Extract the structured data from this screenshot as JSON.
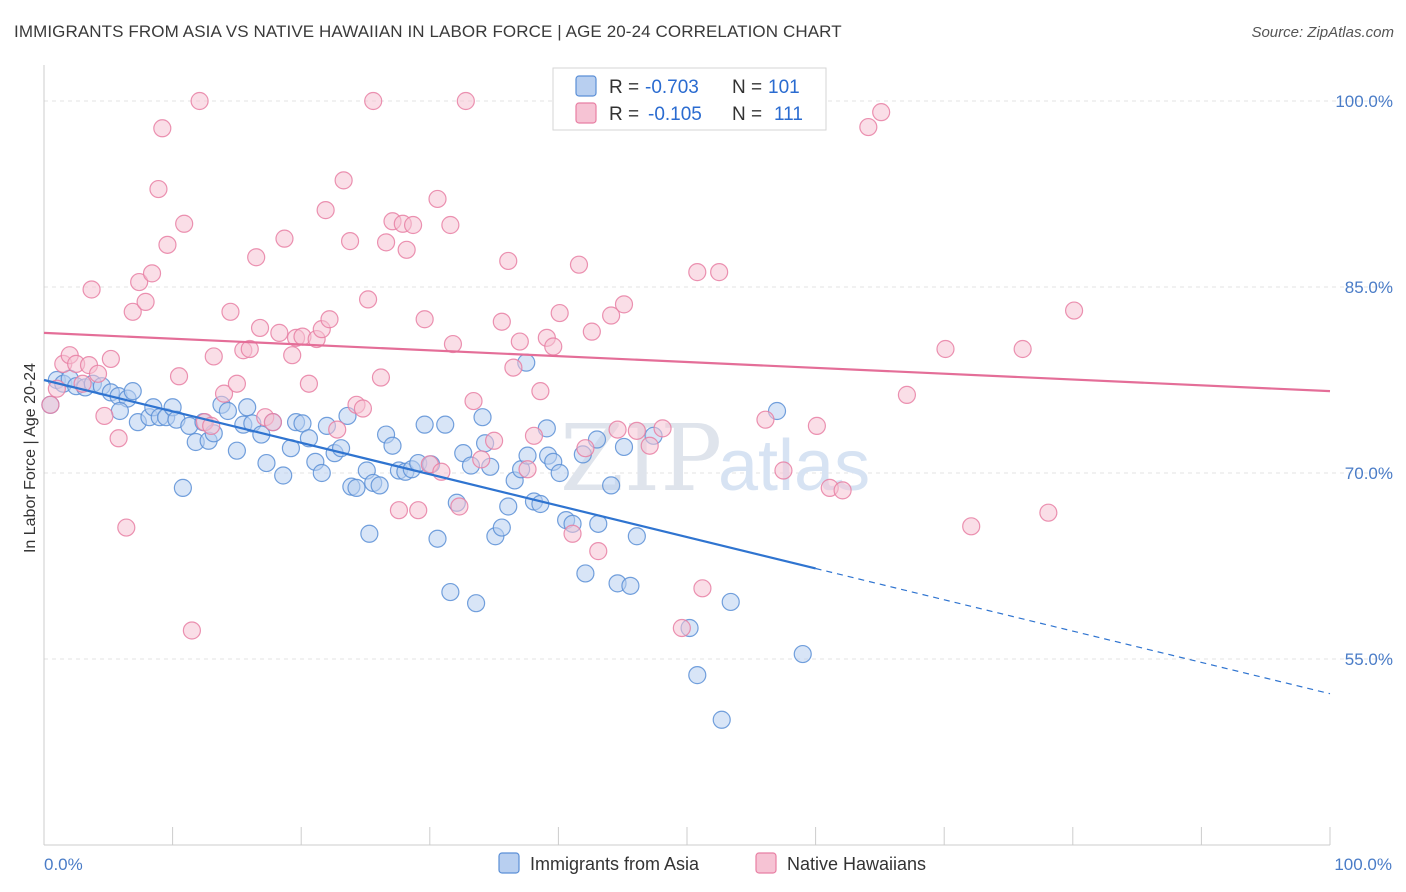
{
  "title": "IMMIGRANTS FROM ASIA VS NATIVE HAWAIIAN IN LABOR FORCE | AGE 20-24 CORRELATION CHART",
  "source": "Source: ZipAtlas.com",
  "watermark": {
    "zip": "ZIP",
    "atlas": "atlas"
  },
  "colors": {
    "blue": "#5b8fd6",
    "blue_fill": "#b8cff0",
    "blue_line": "#2f74d0",
    "pink": "#e87fa3",
    "pink_fill": "#f6c3d4",
    "pink_line": "#e46e98",
    "grid": "#e3e3e3",
    "axis_text": "#4a7cc7"
  },
  "legend": {
    "rows": [
      {
        "r_label": "R = ",
        "r_value": "-0.703",
        "n_label": "N = ",
        "n_value": "101"
      },
      {
        "r_label": "R = ",
        "r_value": "-0.105",
        "n_label": "N = ",
        "n_value": "111"
      }
    ]
  },
  "bottom_legend": [
    "Immigrants from Asia",
    "Native Hawaiians"
  ],
  "chart_data": {
    "type": "scatter",
    "title": "IMMIGRANTS FROM ASIA VS NATIVE HAWAIIAN IN LABOR FORCE | AGE 20-24 CORRELATION CHART",
    "xlabel": "",
    "ylabel": "In Labor Force | Age 20-24",
    "xlim": [
      0,
      100
    ],
    "ylim": [
      40,
      102.5
    ],
    "x_ticks": [
      "0.0%",
      "100.0%"
    ],
    "y_ticks": [
      {
        "value": 100,
        "label": "100.0%"
      },
      {
        "value": 85,
        "label": "85.0%"
      },
      {
        "value": 70,
        "label": "70.0%"
      },
      {
        "value": 55,
        "label": "55.0%"
      }
    ],
    "grid": true,
    "legend_position": "top-center",
    "series": [
      {
        "name": "Immigrants from Asia",
        "r": -0.703,
        "n": 101,
        "trend": {
          "x0": 0,
          "y0": 77.5,
          "x1": 60,
          "y1": 62.3,
          "dash_to_x": 100,
          "dash_to_y": 52.2
        },
        "points": [
          [
            0.5,
            75.5
          ],
          [
            1.0,
            77.5
          ],
          [
            1.5,
            77.2
          ],
          [
            2.0,
            77.6
          ],
          [
            2.5,
            77.0
          ],
          [
            3.2,
            76.9
          ],
          [
            3.8,
            77.2
          ],
          [
            4.5,
            77.0
          ],
          [
            5.2,
            76.5
          ],
          [
            5.8,
            76.2
          ],
          [
            6.5,
            76.0
          ],
          [
            6.9,
            76.6
          ],
          [
            5.9,
            75.0
          ],
          [
            7.3,
            74.1
          ],
          [
            8.2,
            74.5
          ],
          [
            8.5,
            75.3
          ],
          [
            9.0,
            74.5
          ],
          [
            9.5,
            74.5
          ],
          [
            10.0,
            75.3
          ],
          [
            10.3,
            74.3
          ],
          [
            10.8,
            68.8
          ],
          [
            11.3,
            73.8
          ],
          [
            11.8,
            72.5
          ],
          [
            12.4,
            74.1
          ],
          [
            12.8,
            72.6
          ],
          [
            13.2,
            73.2
          ],
          [
            13.8,
            75.5
          ],
          [
            14.3,
            75.0
          ],
          [
            15.0,
            71.8
          ],
          [
            15.5,
            73.9
          ],
          [
            15.8,
            75.3
          ],
          [
            16.2,
            74.0
          ],
          [
            16.9,
            73.1
          ],
          [
            17.3,
            70.8
          ],
          [
            17.8,
            74.1
          ],
          [
            18.6,
            69.8
          ],
          [
            19.2,
            72.0
          ],
          [
            19.6,
            74.1
          ],
          [
            20.1,
            74.0
          ],
          [
            20.6,
            72.8
          ],
          [
            21.1,
            70.9
          ],
          [
            21.6,
            70.0
          ],
          [
            22.0,
            73.8
          ],
          [
            22.6,
            71.6
          ],
          [
            23.1,
            72.0
          ],
          [
            23.6,
            74.6
          ],
          [
            23.9,
            68.9
          ],
          [
            24.3,
            68.8
          ],
          [
            25.1,
            70.2
          ],
          [
            25.6,
            69.2
          ],
          [
            25.3,
            65.1
          ],
          [
            26.1,
            69.0
          ],
          [
            26.6,
            73.1
          ],
          [
            27.1,
            72.2
          ],
          [
            27.6,
            70.2
          ],
          [
            28.1,
            70.1
          ],
          [
            28.6,
            70.3
          ],
          [
            29.1,
            70.8
          ],
          [
            29.6,
            73.9
          ],
          [
            30.1,
            70.7
          ],
          [
            30.6,
            64.7
          ],
          [
            31.2,
            73.9
          ],
          [
            31.6,
            60.4
          ],
          [
            32.1,
            67.6
          ],
          [
            32.6,
            71.6
          ],
          [
            33.2,
            70.6
          ],
          [
            33.6,
            59.5
          ],
          [
            34.1,
            74.5
          ],
          [
            34.3,
            72.4
          ],
          [
            34.7,
            70.5
          ],
          [
            35.1,
            64.9
          ],
          [
            35.6,
            65.6
          ],
          [
            36.1,
            67.3
          ],
          [
            36.6,
            69.4
          ],
          [
            37.1,
            70.3
          ],
          [
            37.6,
            71.4
          ],
          [
            38.1,
            67.7
          ],
          [
            38.6,
            67.5
          ],
          [
            39.1,
            73.6
          ],
          [
            39.2,
            71.4
          ],
          [
            39.6,
            70.9
          ],
          [
            40.1,
            70.0
          ],
          [
            40.6,
            66.2
          ],
          [
            41.1,
            65.9
          ],
          [
            42.1,
            61.9
          ],
          [
            41.9,
            71.5
          ],
          [
            43.0,
            72.7
          ],
          [
            43.1,
            65.9
          ],
          [
            44.1,
            69.0
          ],
          [
            44.6,
            61.1
          ],
          [
            45.1,
            72.1
          ],
          [
            45.6,
            60.9
          ],
          [
            46.1,
            64.9
          ],
          [
            47.4,
            73.0
          ],
          [
            50.2,
            57.5
          ],
          [
            50.8,
            53.7
          ],
          [
            52.7,
            50.1
          ],
          [
            53.4,
            59.6
          ],
          [
            57.0,
            75.0
          ],
          [
            59.0,
            55.4
          ],
          [
            37.5,
            78.9
          ]
        ]
      },
      {
        "name": "Native Hawaiians",
        "r": -0.105,
        "n": 111,
        "trend": {
          "x0": 0,
          "y0": 81.3,
          "x1": 100,
          "y1": 76.6
        },
        "points": [
          [
            0.5,
            75.5
          ],
          [
            1.0,
            76.8
          ],
          [
            1.5,
            78.8
          ],
          [
            2.0,
            79.5
          ],
          [
            2.5,
            78.8
          ],
          [
            3.0,
            77.2
          ],
          [
            3.5,
            78.7
          ],
          [
            3.7,
            84.8
          ],
          [
            4.2,
            78.0
          ],
          [
            4.7,
            74.6
          ],
          [
            5.2,
            79.2
          ],
          [
            5.8,
            72.8
          ],
          [
            6.4,
            65.6
          ],
          [
            6.9,
            83.0
          ],
          [
            7.4,
            85.4
          ],
          [
            7.9,
            83.8
          ],
          [
            8.4,
            86.1
          ],
          [
            8.9,
            92.9
          ],
          [
            9.2,
            97.8
          ],
          [
            9.6,
            88.4
          ],
          [
            10.5,
            77.8
          ],
          [
            10.9,
            90.1
          ],
          [
            11.5,
            57.3
          ],
          [
            12.1,
            100.0
          ],
          [
            12.5,
            74.1
          ],
          [
            13.0,
            73.8
          ],
          [
            13.2,
            79.4
          ],
          [
            14.0,
            76.4
          ],
          [
            14.5,
            83.0
          ],
          [
            15.0,
            77.2
          ],
          [
            15.5,
            79.9
          ],
          [
            16.0,
            80.0
          ],
          [
            16.5,
            87.4
          ],
          [
            16.8,
            81.7
          ],
          [
            17.2,
            74.5
          ],
          [
            17.8,
            74.1
          ],
          [
            18.3,
            81.3
          ],
          [
            18.7,
            88.9
          ],
          [
            19.3,
            79.5
          ],
          [
            19.6,
            80.9
          ],
          [
            20.1,
            81.0
          ],
          [
            20.6,
            77.2
          ],
          [
            21.2,
            80.8
          ],
          [
            21.6,
            81.6
          ],
          [
            21.9,
            91.2
          ],
          [
            22.2,
            82.4
          ],
          [
            22.8,
            73.5
          ],
          [
            23.3,
            93.6
          ],
          [
            23.8,
            88.7
          ],
          [
            24.3,
            75.5
          ],
          [
            24.8,
            75.2
          ],
          [
            25.2,
            84.0
          ],
          [
            25.6,
            100.0
          ],
          [
            26.2,
            77.7
          ],
          [
            26.6,
            88.6
          ],
          [
            27.1,
            90.3
          ],
          [
            27.6,
            67.0
          ],
          [
            27.9,
            90.1
          ],
          [
            28.2,
            88.0
          ],
          [
            28.7,
            90.0
          ],
          [
            29.1,
            67.0
          ],
          [
            29.6,
            82.4
          ],
          [
            30.0,
            70.7
          ],
          [
            30.6,
            92.1
          ],
          [
            30.9,
            70.1
          ],
          [
            31.6,
            90.0
          ],
          [
            31.8,
            80.4
          ],
          [
            32.3,
            67.3
          ],
          [
            32.8,
            100.0
          ],
          [
            33.4,
            75.8
          ],
          [
            34.0,
            71.1
          ],
          [
            35.0,
            72.6
          ],
          [
            35.6,
            82.2
          ],
          [
            36.1,
            87.1
          ],
          [
            36.5,
            78.5
          ],
          [
            37.0,
            80.6
          ],
          [
            37.6,
            70.3
          ],
          [
            38.1,
            73.0
          ],
          [
            38.6,
            76.6
          ],
          [
            39.1,
            80.9
          ],
          [
            39.6,
            80.2
          ],
          [
            40.1,
            82.9
          ],
          [
            41.1,
            65.1
          ],
          [
            41.6,
            86.8
          ],
          [
            42.1,
            72.0
          ],
          [
            42.6,
            81.4
          ],
          [
            43.1,
            63.7
          ],
          [
            44.1,
            82.7
          ],
          [
            44.6,
            73.5
          ],
          [
            45.1,
            83.6
          ],
          [
            46.1,
            73.4
          ],
          [
            47.1,
            72.2
          ],
          [
            48.1,
            73.6
          ],
          [
            49.6,
            57.5
          ],
          [
            50.8,
            86.2
          ],
          [
            51.2,
            60.7
          ],
          [
            52.5,
            86.2
          ],
          [
            55.0,
            100.0
          ],
          [
            56.1,
            74.3
          ],
          [
            57.5,
            70.2
          ],
          [
            60.1,
            73.8
          ],
          [
            61.1,
            68.8
          ],
          [
            62.1,
            68.6
          ],
          [
            64.1,
            97.9
          ],
          [
            65.1,
            99.1
          ],
          [
            67.1,
            76.3
          ],
          [
            70.1,
            80.0
          ],
          [
            72.1,
            65.7
          ],
          [
            76.1,
            80.0
          ],
          [
            78.1,
            66.8
          ],
          [
            80.1,
            83.1
          ]
        ]
      }
    ]
  }
}
